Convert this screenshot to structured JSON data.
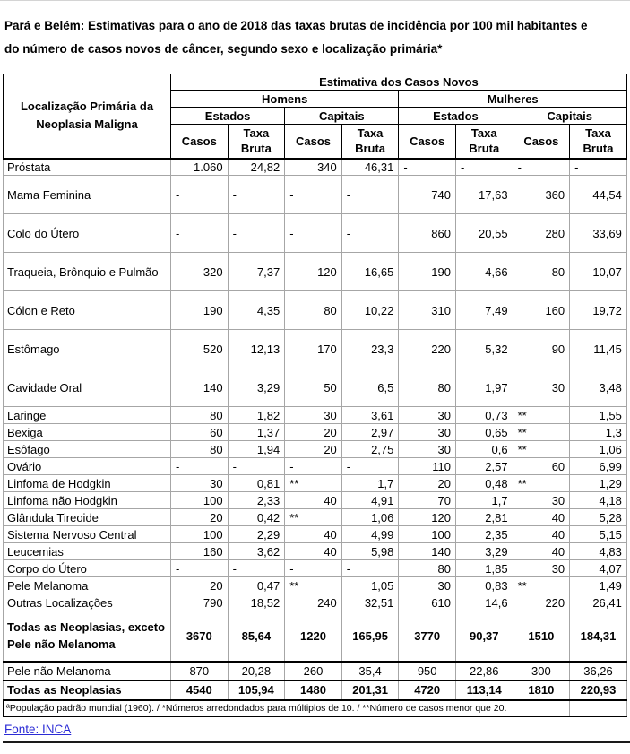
{
  "title": "Pará e Belém: Estimativas para o ano de 2018 das taxas brutas de incidência por 100 mil habitantes e do número de casos novos de câncer, segundo sexo e localização primária*",
  "table": {
    "corner_header": "Localização Primária da Neoplasia Maligna",
    "top_header": "Estimativa dos Casos Novos",
    "sex_headers": [
      "Homens",
      "Mulheres"
    ],
    "region_headers": [
      "Estados",
      "Capitais",
      "Estados",
      "Capitais"
    ],
    "measure_headers": [
      "Casos",
      "Taxa Bruta",
      "Casos",
      "Taxa Bruta",
      "Casos",
      "Taxa Bruta",
      "Casos",
      "Taxa Bruta"
    ],
    "rows": [
      {
        "label": "Próstata",
        "style": "normal",
        "values": [
          "1.060",
          "24,82",
          "340",
          "46,31",
          "-",
          "-",
          "-",
          "-"
        ]
      },
      {
        "label": "Mama Feminina",
        "style": "tall",
        "values": [
          "-",
          "-",
          "-",
          "-",
          "740",
          "17,63",
          "360",
          "44,54"
        ]
      },
      {
        "label": "Colo do Útero",
        "style": "tall",
        "values": [
          "-",
          "-",
          "-",
          "-",
          "860",
          "20,55",
          "280",
          "33,69"
        ]
      },
      {
        "label": "Traqueia, Brônquio e Pulmão",
        "style": "tall",
        "values": [
          "320",
          "7,37",
          "120",
          "16,65",
          "190",
          "4,66",
          "80",
          "10,07"
        ]
      },
      {
        "label": "Cólon e Reto",
        "style": "tall",
        "values": [
          "190",
          "4,35",
          "80",
          "10,22",
          "310",
          "7,49",
          "160",
          "19,72"
        ]
      },
      {
        "label": "Estômago",
        "style": "tall",
        "values": [
          "520",
          "12,13",
          "170",
          "23,3",
          "220",
          "5,32",
          "90",
          "11,45"
        ]
      },
      {
        "label": "Cavidade Oral",
        "style": "tall",
        "values": [
          "140",
          "3,29",
          "50",
          "6,5",
          "80",
          "1,97",
          "30",
          "3,48"
        ]
      },
      {
        "label": "Laringe",
        "style": "normal",
        "values": [
          "80",
          "1,82",
          "30",
          "3,61",
          "30",
          "0,73",
          "**",
          "1,55"
        ]
      },
      {
        "label": "Bexiga",
        "style": "normal",
        "values": [
          "60",
          "1,37",
          "20",
          "2,97",
          "30",
          "0,65",
          "**",
          "1,3"
        ]
      },
      {
        "label": "Esôfago",
        "style": "normal",
        "values": [
          "80",
          "1,94",
          "20",
          "2,75",
          "30",
          "0,6",
          "**",
          "1,06"
        ]
      },
      {
        "label": "Ovário",
        "style": "normal",
        "values": [
          "-",
          "-",
          "-",
          "-",
          "110",
          "2,57",
          "60",
          "6,99"
        ]
      },
      {
        "label": "Linfoma de Hodgkin",
        "style": "normal",
        "values": [
          "30",
          "0,81",
          "**",
          "1,7",
          "20",
          "0,48",
          "**",
          "1,29"
        ]
      },
      {
        "label": "Linfoma não Hodgkin",
        "style": "normal",
        "values": [
          "100",
          "2,33",
          "40",
          "4,91",
          "70",
          "1,7",
          "30",
          "4,18"
        ]
      },
      {
        "label": "Glândula Tireoide",
        "style": "normal",
        "values": [
          "20",
          "0,42",
          "**",
          "1,06",
          "120",
          "2,81",
          "40",
          "5,28"
        ]
      },
      {
        "label": "Sistema Nervoso Central",
        "style": "normal",
        "values": [
          "100",
          "2,29",
          "40",
          "4,99",
          "100",
          "2,35",
          "40",
          "5,15"
        ]
      },
      {
        "label": "Leucemias",
        "style": "normal",
        "values": [
          "160",
          "3,62",
          "40",
          "5,98",
          "140",
          "3,29",
          "40",
          "4,83"
        ]
      },
      {
        "label": "Corpo do Útero",
        "style": "normal",
        "values": [
          "-",
          "-",
          "-",
          "-",
          "80",
          "1,85",
          "30",
          "4,07"
        ]
      },
      {
        "label": "Pele Melanoma",
        "style": "normal",
        "values": [
          "20",
          "0,47",
          "**",
          "1,05",
          "30",
          "0,83",
          "**",
          "1,49"
        ]
      },
      {
        "label": "Outras Localizações",
        "style": "normal",
        "values": [
          "790",
          "18,52",
          "240",
          "32,51",
          "610",
          "14,6",
          "220",
          "26,41"
        ]
      },
      {
        "label": "Todas as Neoplasias, exceto Pele não Melanoma",
        "style": "suma",
        "bold": true,
        "center": true,
        "values": [
          "3670",
          "85,64",
          "1220",
          "165,95",
          "3770",
          "90,37",
          "1510",
          "184,31"
        ]
      },
      {
        "label": "Pele não Melanoma",
        "style": "sumb",
        "center": true,
        "values": [
          "870",
          "20,28",
          "260",
          "35,4",
          "950",
          "22,86",
          "300",
          "36,26"
        ]
      },
      {
        "label": "Todas as Neoplasias",
        "style": "sumc",
        "bold": true,
        "center": true,
        "values": [
          "4540",
          "105,94",
          "1480",
          "201,31",
          "4720",
          "113,14",
          "1810",
          "220,93"
        ]
      }
    ]
  },
  "footnote": "ªPopulação padrão mundial (1960). / *Números arredondados para múltiplos de 10. / **Número de casos menor que 20.",
  "source": {
    "label": "Fonte: INCA"
  },
  "colors": {
    "link_blue": "#2b2bd5",
    "grid_gray": "#a6a6a6",
    "border_black": "#000000"
  }
}
